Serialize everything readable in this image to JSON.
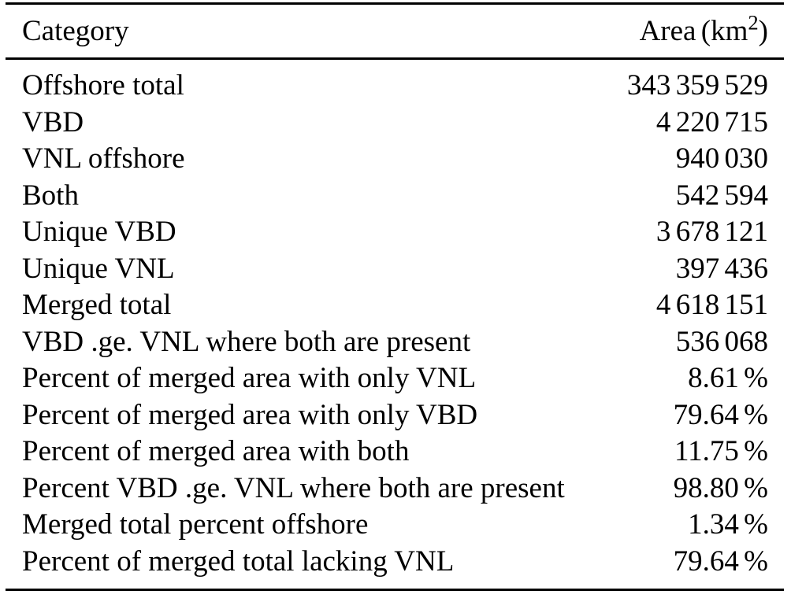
{
  "table": {
    "header": {
      "category": "Category",
      "area_prefix": "Area (km",
      "area_exponent": "2",
      "area_suffix": ")"
    },
    "rows": [
      {
        "label": "Offshore total",
        "value": "343 359 529"
      },
      {
        "label": "VBD",
        "value": "4 220 715"
      },
      {
        "label": "VNL offshore",
        "value": "940 030"
      },
      {
        "label": "Both",
        "value": "542 594"
      },
      {
        "label": "Unique VBD",
        "value": "3 678 121"
      },
      {
        "label": "Unique VNL",
        "value": "397 436"
      },
      {
        "label": "Merged total",
        "value": "4 618 151"
      },
      {
        "label": "VBD .ge. VNL where both are present",
        "value": "536 068"
      },
      {
        "label": "Percent of merged area with only VNL",
        "value": "8.61 %"
      },
      {
        "label": "Percent of merged area with only VBD",
        "value": "79.64 %"
      },
      {
        "label": "Percent of merged area with both",
        "value": "11.75 %"
      },
      {
        "label": "Percent VBD .ge. VNL where both are present",
        "value": "98.80 %"
      },
      {
        "label": "Merged total percent offshore",
        "value": "1.34 %"
      },
      {
        "label": "Percent of merged total lacking VNL",
        "value": "79.64 %"
      }
    ],
    "colors": {
      "text": "#000000",
      "background": "#ffffff",
      "rule": "#000000"
    }
  }
}
